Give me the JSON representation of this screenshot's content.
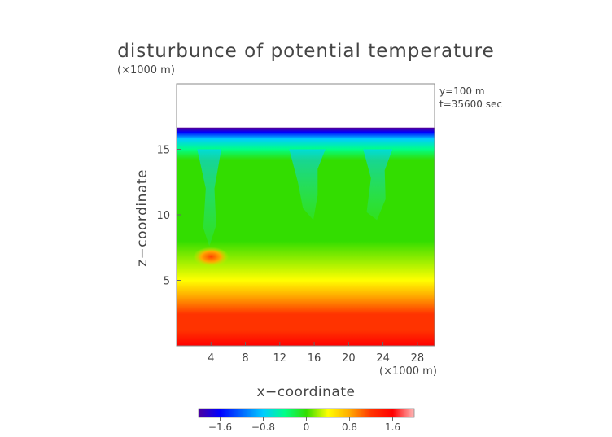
{
  "chart_data": {
    "type": "heatmap",
    "title": "disturbunce of potential temperature",
    "y_scale_label": "(×1000 m)",
    "x_scale_label": "(×1000 m)",
    "xlabel": "x−coordinate",
    "ylabel": "z−coordinate",
    "info_lines": [
      "y=100 m",
      "t=35600 sec"
    ],
    "xlim": [
      0,
      30
    ],
    "ylim": [
      0,
      20
    ],
    "x_ticks": [
      4,
      8,
      12,
      16,
      20,
      24,
      28
    ],
    "y_ticks": [
      5,
      10,
      15
    ],
    "colorbar": {
      "range": [
        -2.0,
        2.0
      ],
      "ticks": [
        -1.6,
        -0.8,
        0,
        0.8,
        1.6
      ],
      "tick_labels": [
        "−1.6",
        "−0.8",
        "0",
        "0.8",
        "1.6"
      ],
      "colors": [
        "#4b00a0",
        "#0000ff",
        "#0066ff",
        "#00ccff",
        "#00ff88",
        "#33dd00",
        "#ffff00",
        "#ffaa00",
        "#ff3300",
        "#ff0000",
        "#ffbbbb"
      ]
    },
    "field": {
      "model_top_z": 16.6,
      "surface_value": 1.6,
      "top_value": -1.9,
      "plumes_x": [
        4.0,
        15.5,
        23.5
      ],
      "warm_blob": {
        "x": 4.0,
        "z": 6.8,
        "value": 1.2
      }
    }
  }
}
